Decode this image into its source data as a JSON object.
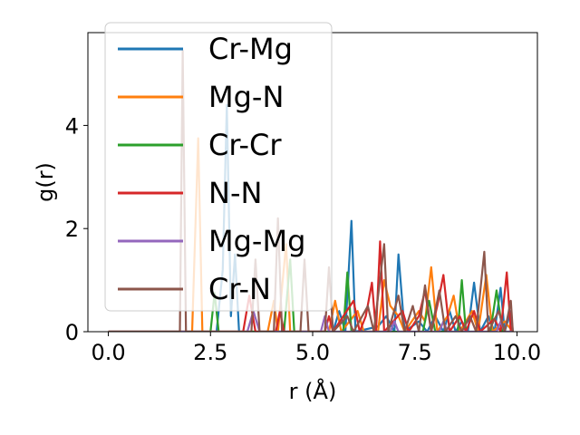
{
  "chart_data": {
    "type": "line",
    "xlabel": "r (Å)",
    "ylabel": "g(r)",
    "xlim": [
      -0.5,
      10.5
    ],
    "ylim": [
      0,
      5.8
    ],
    "xticks": [
      0.0,
      2.5,
      5.0,
      7.5,
      10.0
    ],
    "xtick_labels": [
      "0.0",
      "2.5",
      "5.0",
      "7.5",
      "10.0"
    ],
    "yticks": [
      0,
      2,
      4
    ],
    "ytick_labels": [
      "0",
      "2",
      "4"
    ],
    "grid": false,
    "legend_position": "top-left",
    "series": [
      {
        "name": "Cr-Mg",
        "color": "#1f77b4",
        "points": [
          [
            0,
            0
          ],
          [
            2.65,
            0
          ],
          [
            2.8,
            1.2
          ],
          [
            2.9,
            4.4
          ],
          [
            3.0,
            0.3
          ],
          [
            3.1,
            1.5
          ],
          [
            3.2,
            0
          ],
          [
            5.5,
            0
          ],
          [
            5.65,
            0.4
          ],
          [
            5.8,
            0
          ],
          [
            5.95,
            2.15
          ],
          [
            6.05,
            0
          ],
          [
            6.6,
            0.1
          ],
          [
            6.8,
            0.3
          ],
          [
            7.0,
            0
          ],
          [
            7.1,
            1.5
          ],
          [
            7.25,
            0
          ],
          [
            7.6,
            0.2
          ],
          [
            7.8,
            0
          ],
          [
            8.0,
            0.3
          ],
          [
            8.2,
            0
          ],
          [
            8.35,
            0.4
          ],
          [
            8.5,
            0
          ],
          [
            8.65,
            0.2
          ],
          [
            8.8,
            0
          ],
          [
            8.95,
            0.95
          ],
          [
            9.1,
            0
          ],
          [
            9.3,
            0.3
          ],
          [
            9.45,
            0
          ],
          [
            9.6,
            0.85
          ],
          [
            9.7,
            0
          ],
          [
            9.85,
            0.4
          ],
          [
            9.9,
            0
          ]
        ]
      },
      {
        "name": "Mg-N",
        "color": "#ff7f0e",
        "points": [
          [
            0,
            0
          ],
          [
            2.05,
            0
          ],
          [
            2.2,
            3.75
          ],
          [
            2.3,
            0
          ],
          [
            3.9,
            0
          ],
          [
            4.05,
            0.6
          ],
          [
            4.15,
            0
          ],
          [
            4.35,
            1.7
          ],
          [
            4.45,
            0
          ],
          [
            5.4,
            0
          ],
          [
            5.55,
            0.6
          ],
          [
            5.7,
            0
          ],
          [
            6.1,
            0.4
          ],
          [
            6.25,
            0
          ],
          [
            6.6,
            0
          ],
          [
            6.75,
            1.0
          ],
          [
            6.9,
            0.5
          ],
          [
            7.1,
            0.3
          ],
          [
            7.25,
            0
          ],
          [
            7.6,
            0.4
          ],
          [
            7.75,
            0.2
          ],
          [
            7.9,
            1.25
          ],
          [
            8.05,
            0
          ],
          [
            8.3,
            0.3
          ],
          [
            8.45,
            0.7
          ],
          [
            8.6,
            0
          ],
          [
            8.9,
            0.4
          ],
          [
            9.05,
            0
          ],
          [
            9.25,
            1.1
          ],
          [
            9.4,
            0
          ],
          [
            9.7,
            0.2
          ],
          [
            9.9,
            0
          ]
        ]
      },
      {
        "name": "Cr-Cr",
        "color": "#2ca02c",
        "points": [
          [
            0,
            0
          ],
          [
            2.5,
            0
          ],
          [
            2.6,
            0.75
          ],
          [
            2.7,
            0
          ],
          [
            4.3,
            0
          ],
          [
            4.45,
            1.4
          ],
          [
            4.55,
            0
          ],
          [
            5.75,
            0
          ],
          [
            5.85,
            1.15
          ],
          [
            5.95,
            0
          ],
          [
            7.7,
            0
          ],
          [
            7.85,
            0.6
          ],
          [
            8.0,
            0
          ],
          [
            8.55,
            0
          ],
          [
            8.65,
            1.0
          ],
          [
            8.75,
            0
          ],
          [
            9.35,
            0
          ],
          [
            9.5,
            0.8
          ],
          [
            9.65,
            0
          ],
          [
            9.9,
            0
          ]
        ]
      },
      {
        "name": "N-N",
        "color": "#d62728",
        "points": [
          [
            0,
            0
          ],
          [
            3.3,
            0
          ],
          [
            3.45,
            0.7
          ],
          [
            3.6,
            0
          ],
          [
            4.1,
            0
          ],
          [
            4.2,
            0.4
          ],
          [
            4.3,
            0
          ],
          [
            5.3,
            0
          ],
          [
            5.4,
            0.3
          ],
          [
            5.5,
            0
          ],
          [
            6.0,
            0.6
          ],
          [
            6.15,
            0
          ],
          [
            6.3,
            0.3
          ],
          [
            6.45,
            0.95
          ],
          [
            6.55,
            0
          ],
          [
            6.65,
            1.75
          ],
          [
            6.75,
            0
          ],
          [
            7.2,
            0.4
          ],
          [
            7.35,
            0
          ],
          [
            7.6,
            0.3
          ],
          [
            7.75,
            0.8
          ],
          [
            7.9,
            0
          ],
          [
            8.05,
            0.5
          ],
          [
            8.2,
            1.1
          ],
          [
            8.35,
            0
          ],
          [
            8.6,
            0.3
          ],
          [
            8.75,
            0
          ],
          [
            8.95,
            0.4
          ],
          [
            9.1,
            0
          ],
          [
            9.45,
            0.25
          ],
          [
            9.6,
            0
          ],
          [
            9.75,
            1.15
          ],
          [
            9.85,
            0
          ]
        ]
      },
      {
        "name": "Mg-Mg",
        "color": "#9467bd",
        "points": [
          [
            0,
            0
          ],
          [
            3.4,
            0
          ],
          [
            3.55,
            0.4
          ],
          [
            3.7,
            0
          ],
          [
            5.2,
            0
          ],
          [
            5.3,
            0.3
          ],
          [
            5.4,
            0
          ],
          [
            6.9,
            0
          ],
          [
            7.0,
            0.2
          ],
          [
            7.1,
            0
          ],
          [
            8.1,
            0
          ],
          [
            8.2,
            0.2
          ],
          [
            8.3,
            0
          ],
          [
            9.5,
            0
          ],
          [
            9.6,
            0.2
          ],
          [
            9.7,
            0
          ],
          [
            9.9,
            0
          ]
        ]
      },
      {
        "name": "Cr-N",
        "color": "#8c564b",
        "points": [
          [
            0,
            0
          ],
          [
            1.75,
            0
          ],
          [
            1.82,
            5.45
          ],
          [
            1.9,
            0
          ],
          [
            3.5,
            0
          ],
          [
            3.6,
            1.4
          ],
          [
            3.7,
            0
          ],
          [
            4.05,
            0
          ],
          [
            4.15,
            2.2
          ],
          [
            4.25,
            0
          ],
          [
            4.7,
            0
          ],
          [
            4.8,
            1.4
          ],
          [
            4.9,
            0
          ],
          [
            5.3,
            0
          ],
          [
            5.4,
            1.25
          ],
          [
            5.5,
            0
          ],
          [
            5.85,
            0.3
          ],
          [
            6.0,
            0
          ],
          [
            6.35,
            0.5
          ],
          [
            6.5,
            0
          ],
          [
            6.75,
            1.7
          ],
          [
            6.85,
            0
          ],
          [
            7.1,
            0.7
          ],
          [
            7.25,
            0
          ],
          [
            7.45,
            0.5
          ],
          [
            7.6,
            0
          ],
          [
            7.75,
            0.9
          ],
          [
            7.9,
            0
          ],
          [
            8.1,
            0.8
          ],
          [
            8.25,
            0
          ],
          [
            8.5,
            0.3
          ],
          [
            8.65,
            0
          ],
          [
            8.85,
            0.3
          ],
          [
            9.0,
            0
          ],
          [
            9.2,
            1.55
          ],
          [
            9.3,
            0
          ],
          [
            9.55,
            0.4
          ],
          [
            9.7,
            0
          ],
          [
            9.85,
            0.6
          ],
          [
            9.9,
            0
          ]
        ]
      }
    ]
  }
}
